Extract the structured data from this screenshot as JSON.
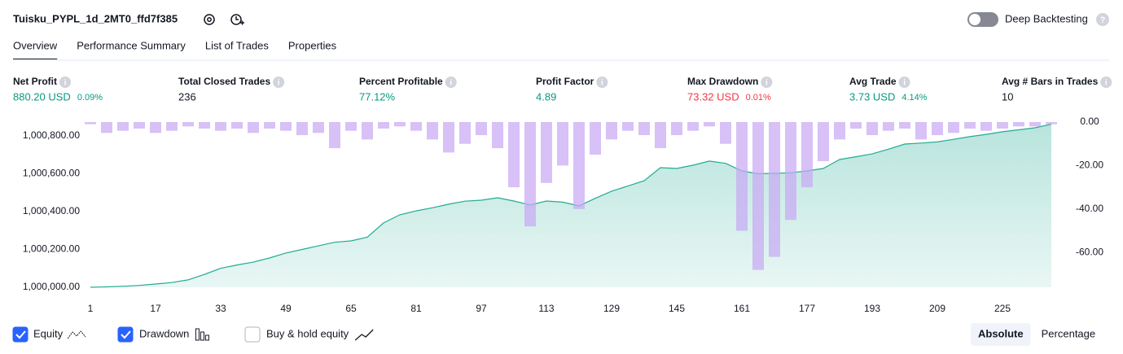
{
  "header": {
    "title": "Tuisku_PYPL_1d_2MT0_ffd7f385",
    "deep_backtesting": "Deep Backtesting"
  },
  "tabs": [
    "Overview",
    "Performance Summary",
    "List of Trades",
    "Properties"
  ],
  "metrics": [
    {
      "label": "Net Profit",
      "value": "880.20 USD",
      "extra": "0.09%",
      "tone": "positive"
    },
    {
      "label": "Total Closed Trades",
      "value": "236",
      "tone": "neutral"
    },
    {
      "label": "Percent Profitable",
      "value": "77.12%",
      "tone": "positive"
    },
    {
      "label": "Profit Factor",
      "value": "4.89",
      "tone": "positive"
    },
    {
      "label": "Max Drawdown",
      "value": "73.32 USD",
      "extra": "0.01%",
      "tone": "negative"
    },
    {
      "label": "Avg Trade",
      "value": "3.73 USD",
      "extra": "4.14%",
      "tone": "positive"
    },
    {
      "label": "Avg # Bars in Trades",
      "value": "10",
      "tone": "neutral"
    }
  ],
  "chart_data": {
    "type": "combo",
    "x": [
      1,
      5,
      9,
      13,
      17,
      21,
      25,
      29,
      33,
      37,
      41,
      45,
      49,
      53,
      57,
      61,
      65,
      69,
      73,
      77,
      81,
      85,
      89,
      93,
      97,
      101,
      105,
      109,
      113,
      117,
      121,
      125,
      129,
      133,
      137,
      141,
      145,
      149,
      153,
      157,
      161,
      165,
      169,
      173,
      177,
      181,
      185,
      189,
      193,
      197,
      201,
      205,
      209,
      213,
      217,
      221,
      225,
      229,
      233,
      237
    ],
    "series": [
      {
        "name": "Equity",
        "type": "area",
        "color": "#22ab94",
        "checked": true,
        "values": [
          1000000,
          1000002,
          1000005,
          1000010,
          1000017,
          1000025,
          1000039,
          1000068,
          1000100,
          1000118,
          1000133,
          1000155,
          1000181,
          1000200,
          1000219,
          1000238,
          1000245,
          1000265,
          1000340,
          1000383,
          1000404,
          1000420,
          1000439,
          1000455,
          1000460,
          1000473,
          1000456,
          1000435,
          1000456,
          1000450,
          1000430,
          1000470,
          1000508,
          1000535,
          1000563,
          1000632,
          1000628,
          1000645,
          1000667,
          1000655,
          1000615,
          1000600,
          1000602,
          1000605,
          1000615,
          1000628,
          1000675,
          1000690,
          1000705,
          1000730,
          1000757,
          1000762,
          1000768,
          1000782,
          1000796,
          1000808,
          1000822,
          1000832,
          1000843,
          1000862
        ]
      },
      {
        "name": "Drawdown",
        "type": "bar",
        "axis": "y2",
        "color": "#c8a9f4",
        "checked": true,
        "values": [
          -1,
          -5,
          -4,
          -3,
          -5,
          -4,
          -2,
          -3,
          -4,
          -3,
          -5,
          -3,
          -4,
          -6,
          -5,
          -12,
          -4,
          -8,
          -3,
          -2,
          -4,
          -8,
          -14,
          -10,
          -6,
          -12,
          -30,
          -48,
          -28,
          -20,
          -40,
          -15,
          -8,
          -4,
          -6,
          -12,
          -6,
          -4,
          -2,
          -10,
          -50,
          -68,
          -62,
          -45,
          -30,
          -18,
          -8,
          -3,
          -6,
          -4,
          -3,
          -8,
          -6,
          -5,
          -3,
          -4,
          -3,
          -2,
          -2,
          -1
        ]
      }
    ],
    "xlim": [
      1,
      239
    ],
    "xticks": [
      1,
      17,
      33,
      49,
      65,
      81,
      97,
      113,
      129,
      145,
      161,
      177,
      193,
      209,
      225
    ],
    "ylim": [
      1000000,
      1000873
    ],
    "yticks": [
      {
        "value": 1000000,
        "label": "1,000,000.00"
      },
      {
        "value": 1000200,
        "label": "1,000,200.00"
      },
      {
        "value": 1000400,
        "label": "1,000,400.00"
      },
      {
        "value": 1000600,
        "label": "1,000,600.00"
      },
      {
        "value": 1000800,
        "label": "1,000,800.00"
      }
    ],
    "y2lim": [
      -76,
      0
    ],
    "y2ticks": [
      {
        "value": 0,
        "label": "0.00"
      },
      {
        "value": -20,
        "label": "-20.00"
      },
      {
        "value": -40,
        "label": "-40.00"
      },
      {
        "value": -60,
        "label": "-60.00"
      }
    ]
  },
  "controls": {
    "extra_legend": {
      "name": "Buy & hold equity",
      "checked": false
    },
    "scale_modes": [
      "Absolute",
      "Percentage"
    ],
    "active_scale": 0
  }
}
